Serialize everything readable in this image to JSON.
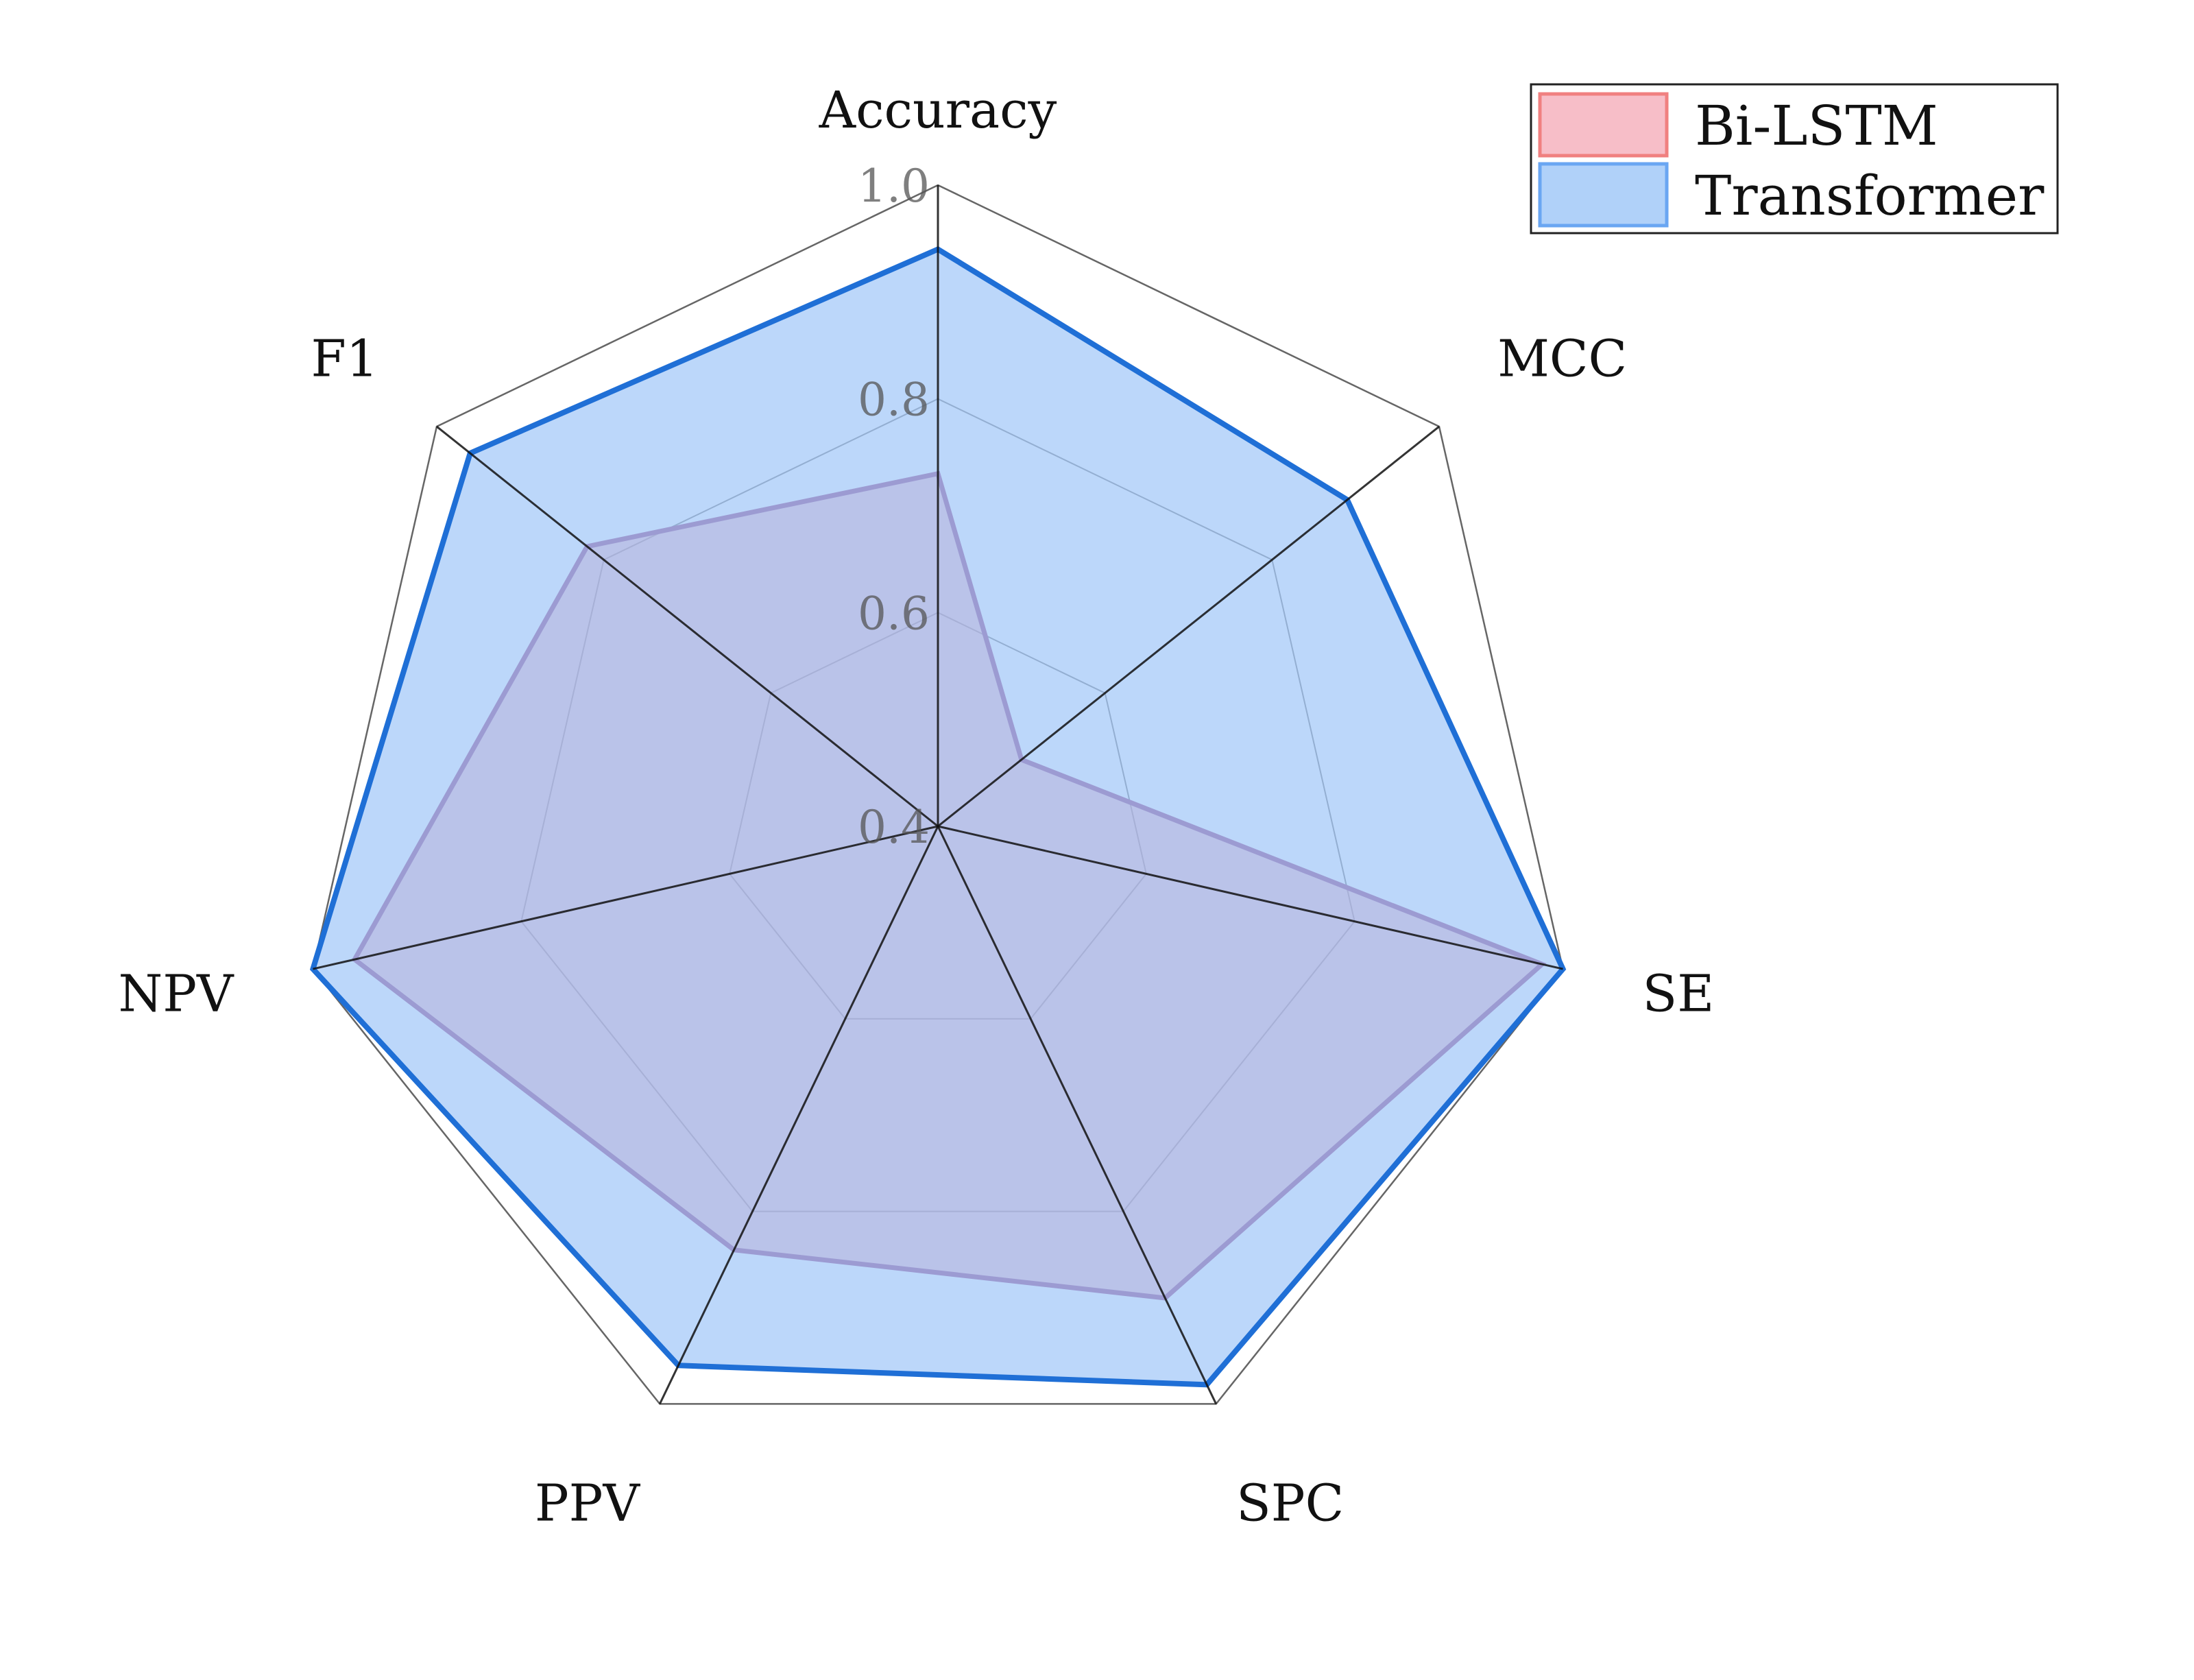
{
  "chart_data": {
    "type": "radar",
    "axes": [
      "Accuracy",
      "MCC",
      "SE",
      "SPC",
      "PPV",
      "NPV",
      "F1"
    ],
    "rlim": [
      0.4,
      1.0
    ],
    "ticks": [
      0.4,
      0.6,
      0.8,
      1.0
    ],
    "tick_labels": [
      "0.4",
      "0.6",
      "0.8",
      "1.0"
    ],
    "grid": true,
    "legend_position": "top-right",
    "series": [
      {
        "name": "Bi-LSTM",
        "values": [
          0.73,
          0.5,
          0.98,
          0.89,
          0.84,
          0.96,
          0.82
        ],
        "fill_color": "#f4a3b0",
        "line_color": "#b06a9c"
      },
      {
        "name": "Transformer",
        "values": [
          0.94,
          0.89,
          1.0,
          0.98,
          0.96,
          1.0,
          0.96
        ],
        "fill_color": "#8fbdf7",
        "line_color": "#1f6fd6"
      }
    ]
  }
}
